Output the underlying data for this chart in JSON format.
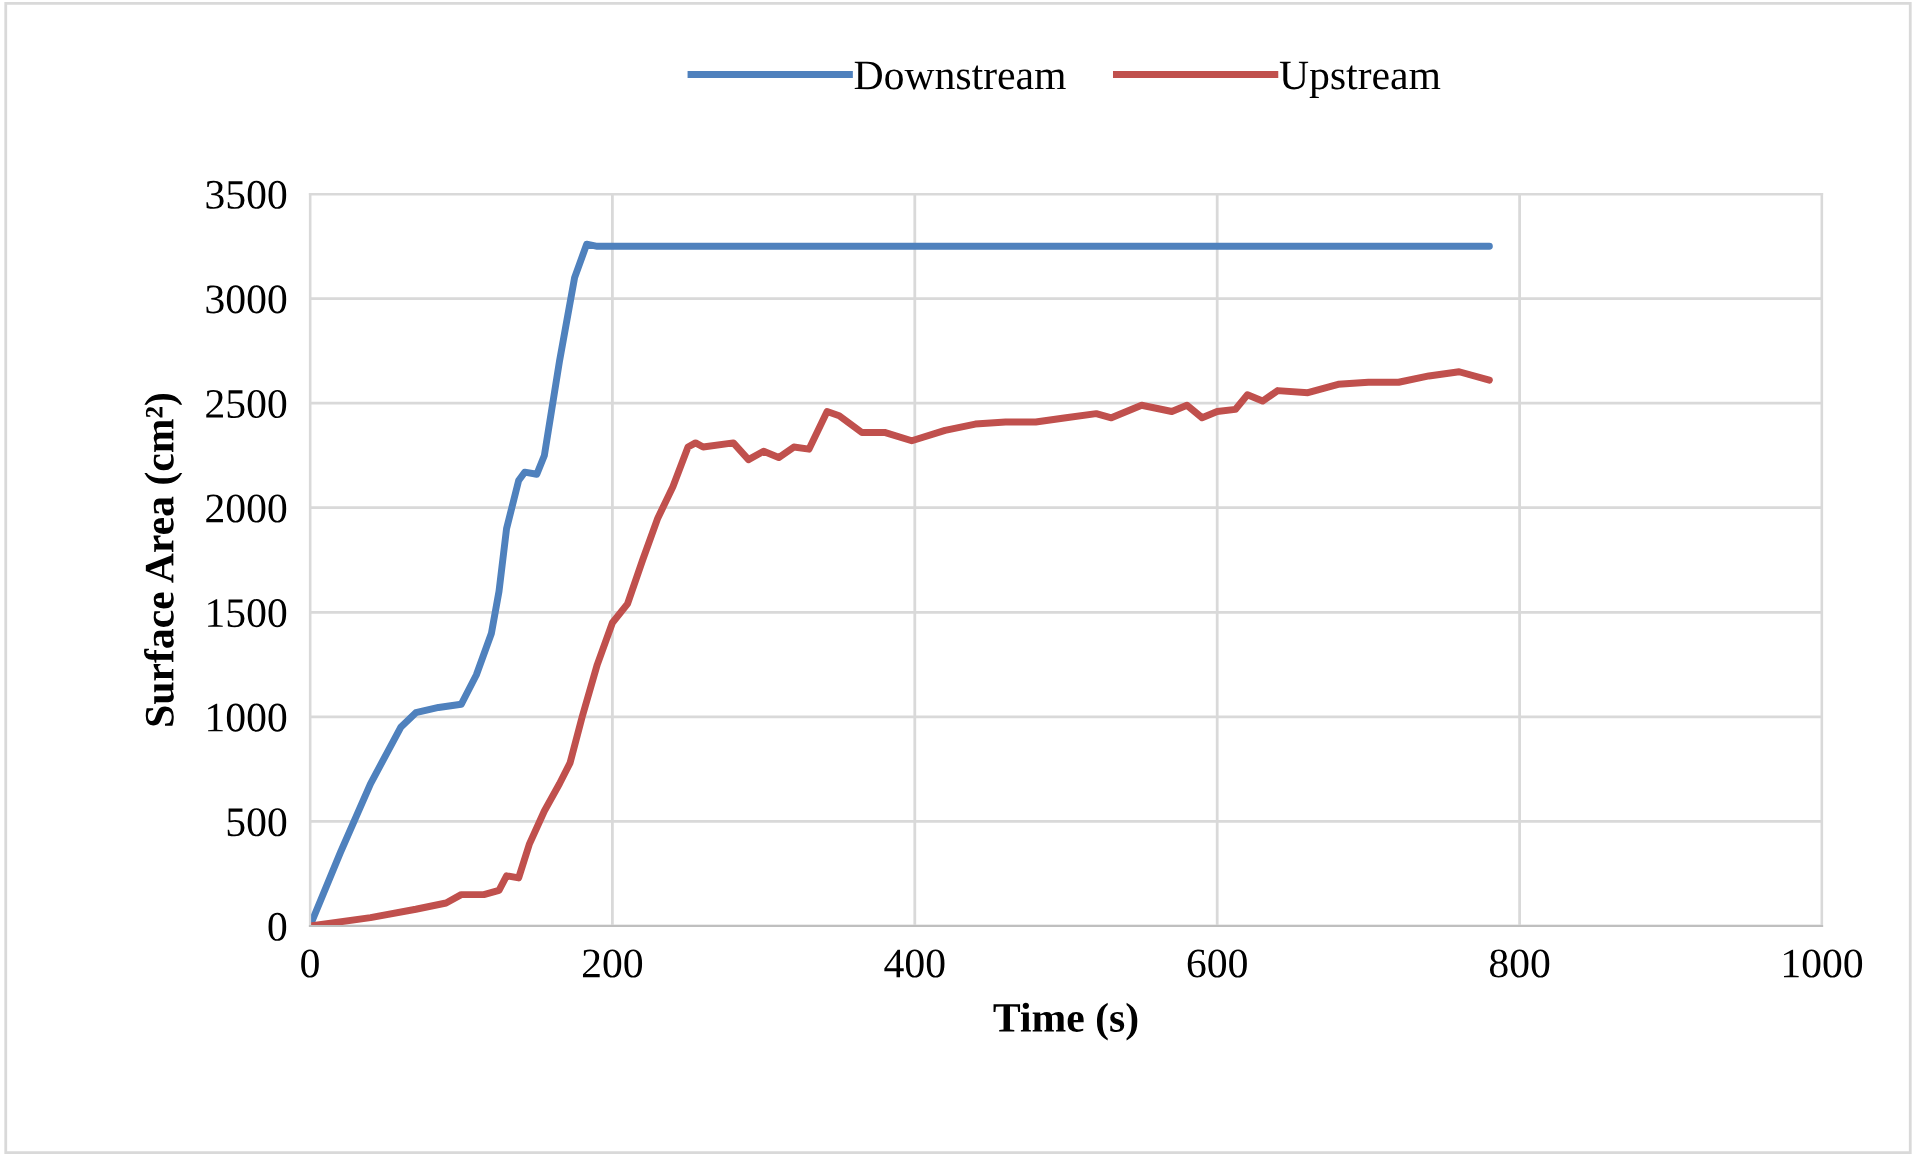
{
  "chart_data": {
    "type": "line",
    "xlabel": "Time (s)",
    "ylabel": "Surface Area (cm²)",
    "xlim": [
      0,
      1000
    ],
    "xticks": [
      0,
      200,
      400,
      600,
      800,
      1000
    ],
    "ylim": [
      0,
      3500
    ],
    "yticks": [
      0,
      500,
      1000,
      1500,
      2000,
      2500,
      3000,
      3500
    ],
    "grid": true,
    "legend": "top",
    "marker": "none",
    "line_style": "solid",
    "series": [
      {
        "name": "Downstream",
        "color": "#4f81bd",
        "x": [
          0,
          20,
          40,
          60,
          70,
          85,
          100,
          110,
          120,
          125,
          130,
          138,
          142,
          150,
          155,
          165,
          175,
          183,
          190,
          780
        ],
        "values": [
          0,
          350,
          680,
          950,
          1020,
          1045,
          1060,
          1200,
          1400,
          1600,
          1900,
          2130,
          2170,
          2160,
          2250,
          2700,
          3100,
          3260,
          3250,
          3250
        ]
      },
      {
        "name": "Upstream",
        "color": "#c0504d",
        "x": [
          0,
          40,
          70,
          90,
          100,
          115,
          125,
          130,
          138,
          145,
          155,
          165,
          172,
          180,
          190,
          200,
          210,
          220,
          230,
          240,
          250,
          255,
          260,
          280,
          290,
          300,
          310,
          320,
          330,
          342,
          350,
          365,
          380,
          398,
          420,
          440,
          460,
          480,
          500,
          520,
          530,
          550,
          570,
          580,
          590,
          600,
          612,
          620,
          630,
          640,
          660,
          680,
          700,
          720,
          740,
          760,
          780
        ],
        "values": [
          0,
          40,
          80,
          110,
          150,
          150,
          170,
          240,
          230,
          390,
          550,
          680,
          780,
          1000,
          1250,
          1450,
          1540,
          1750,
          1950,
          2100,
          2290,
          2310,
          2290,
          2310,
          2230,
          2270,
          2240,
          2290,
          2280,
          2460,
          2440,
          2360,
          2360,
          2320,
          2370,
          2400,
          2410,
          2410,
          2430,
          2450,
          2430,
          2490,
          2460,
          2490,
          2430,
          2460,
          2470,
          2540,
          2510,
          2560,
          2550,
          2590,
          2600,
          2600,
          2630,
          2650,
          2610
        ]
      }
    ]
  }
}
